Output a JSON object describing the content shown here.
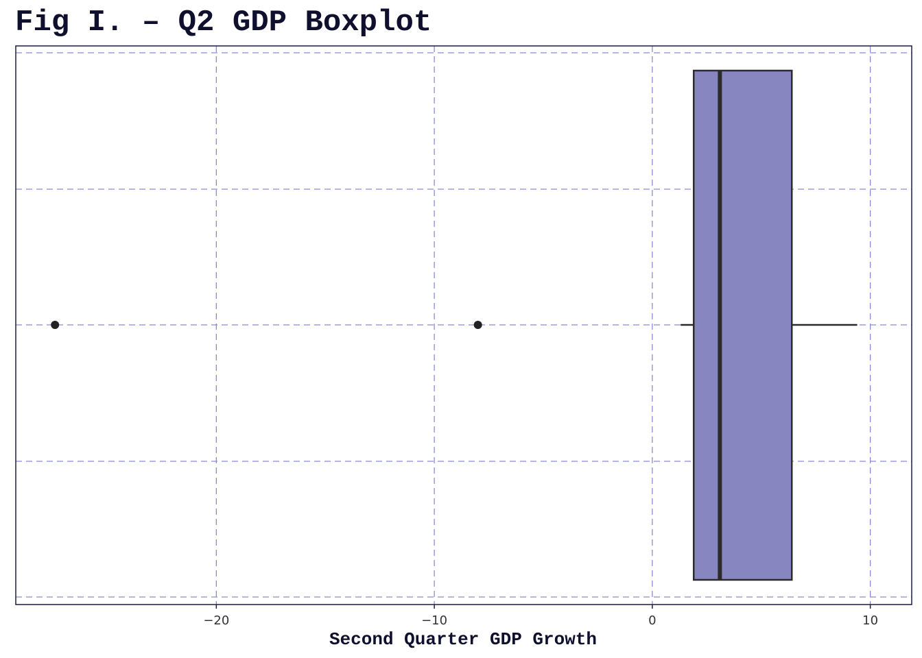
{
  "chart_data": {
    "type": "boxplot",
    "title": "Fig I. – Q2 GDP Boxplot",
    "xlabel": "Second Quarter GDP Growth",
    "ylabel": "",
    "orientation": "horizontal",
    "xlim": [
      -29.2,
      11.9
    ],
    "x_ticks": [
      -20,
      -10,
      0,
      10
    ],
    "x_tick_labels": [
      "−20",
      "−10",
      "0",
      "10"
    ],
    "box": {
      "whisker_low": 1.3,
      "q1": 1.9,
      "median": 3.1,
      "q3": 6.4,
      "whisker_high": 9.4
    },
    "outliers": [
      -27.4,
      -8.0
    ],
    "grid": true,
    "grid_style": "dashed",
    "legend": "none",
    "colors": {
      "box_fill": "#8886c0",
      "box_stroke": "#2b2b2b",
      "grid": "#8a8ad6",
      "title": "#0f0f2e",
      "axis_frame": "#1c1c40",
      "points": "#222222",
      "tick_label": "#333333"
    }
  }
}
